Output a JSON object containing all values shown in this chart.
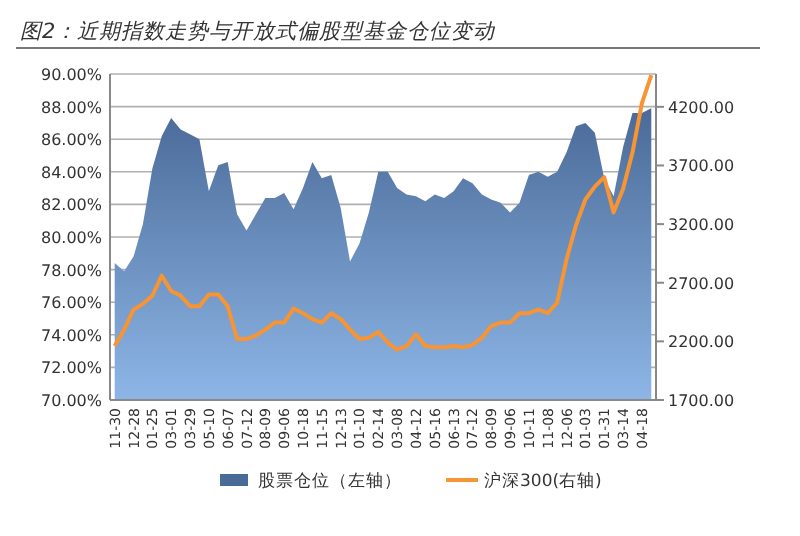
{
  "chart_data": {
    "type": "area",
    "title": "图2：近期指数走势与开放式偏股型基金仓位变动",
    "categories": [
      "11-30",
      null,
      "12-28",
      null,
      "01-25",
      null,
      "03-01",
      null,
      "03-29",
      null,
      "05-10",
      null,
      "06-07",
      null,
      "07-12",
      null,
      "08-09",
      null,
      "09-06",
      null,
      "10-18",
      null,
      "11-15",
      null,
      "12-13",
      null,
      "01-10",
      null,
      "02-14",
      null,
      "03-08",
      null,
      "04-12",
      null,
      "05-16",
      null,
      "06-13",
      null,
      "07-12",
      null,
      "08-09",
      null,
      "09-06",
      null,
      "10-11",
      null,
      "11-08",
      null,
      "12-06",
      null,
      "01-03",
      null,
      "01-31",
      null,
      "03-14",
      null,
      "04-18",
      null
    ],
    "series": [
      {
        "name": "股票仓位（左轴）",
        "axis": "y",
        "color": "#4a6a98",
        "values": [
          78.4,
          77.9,
          78.8,
          80.8,
          84.2,
          86.2,
          87.3,
          86.6,
          86.3,
          86.0,
          82.8,
          84.4,
          84.6,
          81.4,
          80.4,
          81.4,
          82.4,
          82.4,
          82.7,
          81.7,
          83.0,
          84.6,
          83.6,
          83.8,
          81.8,
          78.5,
          79.6,
          81.5,
          84.0,
          84.0,
          83.0,
          82.6,
          82.5,
          82.2,
          82.6,
          82.4,
          82.8,
          83.6,
          83.3,
          82.6,
          82.3,
          82.1,
          81.5,
          82.1,
          83.8,
          84.0,
          83.7,
          84.0,
          85.2,
          86.8,
          87.0,
          86.4,
          83.6,
          82.5,
          85.5,
          87.6,
          87.6,
          87.9
        ]
      },
      {
        "name": "沪深300(右轴)",
        "type": "line",
        "axis": "y2",
        "color": "#f79433",
        "values": [
          2160,
          2300,
          2470,
          2520,
          2590,
          2760,
          2630,
          2590,
          2500,
          2500,
          2600,
          2600,
          2500,
          2220,
          2220,
          2250,
          2300,
          2360,
          2360,
          2480,
          2440,
          2390,
          2360,
          2440,
          2390,
          2300,
          2220,
          2230,
          2280,
          2190,
          2130,
          2160,
          2260,
          2160,
          2150,
          2150,
          2160,
          2150,
          2170,
          2230,
          2330,
          2360,
          2360,
          2440,
          2440,
          2470,
          2440,
          2530,
          2900,
          3190,
          3410,
          3520,
          3600,
          3300,
          3500,
          3810,
          4230,
          4470
        ]
      }
    ],
    "ylim": [
      70,
      90
    ],
    "yticks": [
      {
        "value": 70,
        "label": "70.00%"
      },
      {
        "value": 72,
        "label": "72.00%"
      },
      {
        "value": 74,
        "label": "74.00%"
      },
      {
        "value": 76,
        "label": "76.00%"
      },
      {
        "value": 78,
        "label": "78.00%"
      },
      {
        "value": 80,
        "label": "80.00%"
      },
      {
        "value": 82,
        "label": "82.00%"
      },
      {
        "value": 84,
        "label": "84.00%"
      },
      {
        "value": 86,
        "label": "86.00%"
      },
      {
        "value": 88,
        "label": "88.00%"
      },
      {
        "value": 90,
        "label": "90.00%"
      }
    ],
    "y2lim": [
      1700,
      4480
    ],
    "y2ticks": [
      {
        "value": 1700,
        "label": "1700.00"
      },
      {
        "value": 2200,
        "label": "2200.00"
      },
      {
        "value": 2700,
        "label": "2700.00"
      },
      {
        "value": 3200,
        "label": "3200.00"
      },
      {
        "value": 3700,
        "label": "3700.00"
      },
      {
        "value": 4200,
        "label": "4200.00"
      }
    ],
    "grid": "y",
    "legend": "bottom"
  }
}
